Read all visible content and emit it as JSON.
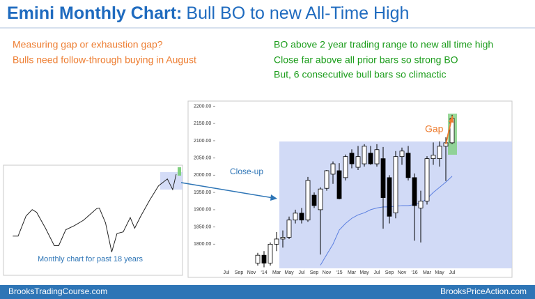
{
  "header": {
    "title_bold": "Emini Monthly Chart:",
    "title_rest": "Bull BO to new All-Time High"
  },
  "left_notes": [
    "Measuring gap or exhaustion gap?",
    "Bulls need follow-through buying in August"
  ],
  "right_notes": [
    "BO above 2 year trading range to new all time high",
    "Close far above all prior bars so strong BO",
    "But, 6 consecutive bull bars so climactic"
  ],
  "footer": {
    "left": "BrooksTradingCourse.com",
    "right": "BrooksPriceAction.com"
  },
  "chart_data": [
    {
      "type": "candlestick",
      "categories": [
        "Jul",
        null,
        "Sep",
        null,
        "Nov",
        null,
        "‘14",
        null,
        "Mar",
        null,
        "May",
        null,
        "Jul",
        null,
        "Sep",
        null,
        "Nov",
        null,
        "‘15",
        null,
        "Mar",
        null,
        "May",
        null,
        "Jul",
        null,
        "Sep",
        null,
        "Nov",
        null,
        "‘16",
        null,
        "Mar",
        null,
        "May",
        null,
        "Jul"
      ],
      "open": [
        null,
        null,
        null,
        null,
        null,
        1745,
        1768,
        1745,
        1800,
        1815,
        1820,
        1870,
        1890,
        1870,
        1942,
        1900,
        1962,
        2003,
        2013,
        1993,
        2064,
        2023,
        2033,
        2064,
        2033,
        2048,
        1993,
        1891,
        2054,
        2064,
        1993,
        1905,
        1925,
        2048,
        2048,
        2084,
        2094
      ],
      "high": [
        null,
        null,
        null,
        null,
        null,
        1775,
        1780,
        1805,
        1835,
        1840,
        1880,
        1900,
        1905,
        1995,
        1950,
        1965,
        2015,
        2040,
        2035,
        2060,
        2075,
        2085,
        2090,
        2085,
        2090,
        2082,
        2000,
        2070,
        2080,
        2085,
        2005,
        1955,
        2055,
        2095,
        2098,
        2110,
        2175
      ],
      "low": [
        null,
        null,
        null,
        null,
        null,
        1738,
        1733,
        1738,
        1780,
        1790,
        1815,
        1860,
        1860,
        1865,
        1905,
        1770,
        1955,
        1975,
        1930,
        1985,
        2020,
        2015,
        2025,
        2030,
        2025,
        1845,
        1860,
        1875,
        2030,
        1985,
        1810,
        1805,
        1915,
        2030,
        2025,
        1983,
        2090
      ],
      "close": [
        null,
        null,
        null,
        null,
        null,
        1768,
        1745,
        1800,
        1815,
        1820,
        1870,
        1890,
        1870,
        1985,
        1912,
        1960,
        2013,
        2033,
        1932,
        2054,
        2033,
        2054,
        2084,
        2033,
        2074,
        1935,
        1881,
        2054,
        2070,
        1993,
        1912,
        1925,
        2048,
        2058,
        2084,
        2094,
        2165
      ],
      "up_color": "#ffffff",
      "down_color": "#000000",
      "series": [
        {
          "color": "#5b7fe0",
          "values": [
            null,
            null,
            null,
            null,
            null,
            null,
            null,
            null,
            null,
            null,
            null,
            null,
            null,
            null,
            null,
            1739,
            1770,
            1800,
            1841,
            1860,
            1875,
            1885,
            1891,
            1900,
            1905,
            1908,
            1908,
            1910,
            1912,
            1912,
            1915,
            1920,
            1932,
            1950,
            1965,
            1980,
            1997
          ]
        }
      ],
      "ylim": [
        1730,
        2215
      ],
      "yticks": [
        {
          "value": 1800,
          "label": "1800.00"
        },
        {
          "value": 1850,
          "label": "1850.00"
        },
        {
          "value": 1900,
          "label": "1900.00"
        },
        {
          "value": 1950,
          "label": "1950.00"
        },
        {
          "value": 2000,
          "label": "2000.00"
        },
        {
          "value": 2050,
          "label": "2050.00"
        },
        {
          "value": 2100,
          "label": "2100.00"
        },
        {
          "value": 2150,
          "label": "2150.00"
        },
        {
          "value": 2200,
          "label": "2200.00"
        }
      ],
      "annotations": [
        "Close-up",
        "Gap"
      ]
    },
    {
      "type": "line",
      "x": [
        1998,
        1998.6,
        1999.5,
        2000.2,
        2000.7,
        2001.7,
        2002.7,
        2003.2,
        2004,
        2005,
        2006,
        2007.5,
        2007.8,
        2008.5,
        2009.2,
        2009.8,
        2010.5,
        2011.3,
        2011.8,
        2012.5,
        2013.5,
        2014.5,
        2015.5,
        2016.1,
        2016.5
      ],
      "values": [
        1000,
        1000,
        1380,
        1500,
        1450,
        1150,
        820,
        820,
        1120,
        1200,
        1300,
        1520,
        1530,
        1250,
        700,
        1050,
        1080,
        1350,
        1150,
        1380,
        1680,
        1950,
        2080,
        1880,
        2170
      ],
      "color": "#222222",
      "xlim": [
        1997.5,
        2016.9
      ],
      "ylim": [
        300,
        2300
      ],
      "annotations": [
        "Monthly chart for past 18 years"
      ]
    }
  ]
}
